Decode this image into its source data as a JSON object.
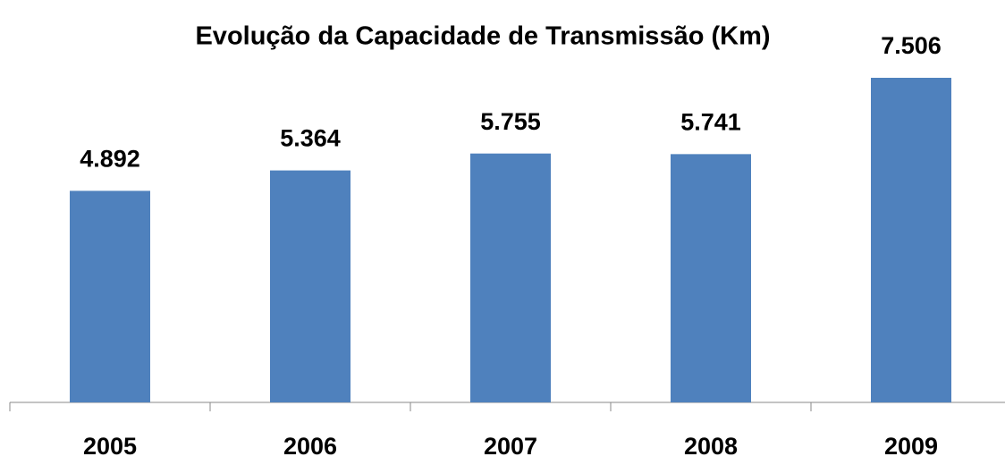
{
  "chart_data": {
    "type": "bar",
    "title": "Evolução da Capacidade de Transmissão (Km)",
    "categories": [
      "2005",
      "2006",
      "2007",
      "2008",
      "2009"
    ],
    "values": [
      4892,
      5364,
      5755,
      5741,
      7506
    ],
    "value_labels": [
      "4.892",
      "5.364",
      "5.755",
      "5.741",
      "7.506"
    ],
    "color": "#4f81bd"
  }
}
